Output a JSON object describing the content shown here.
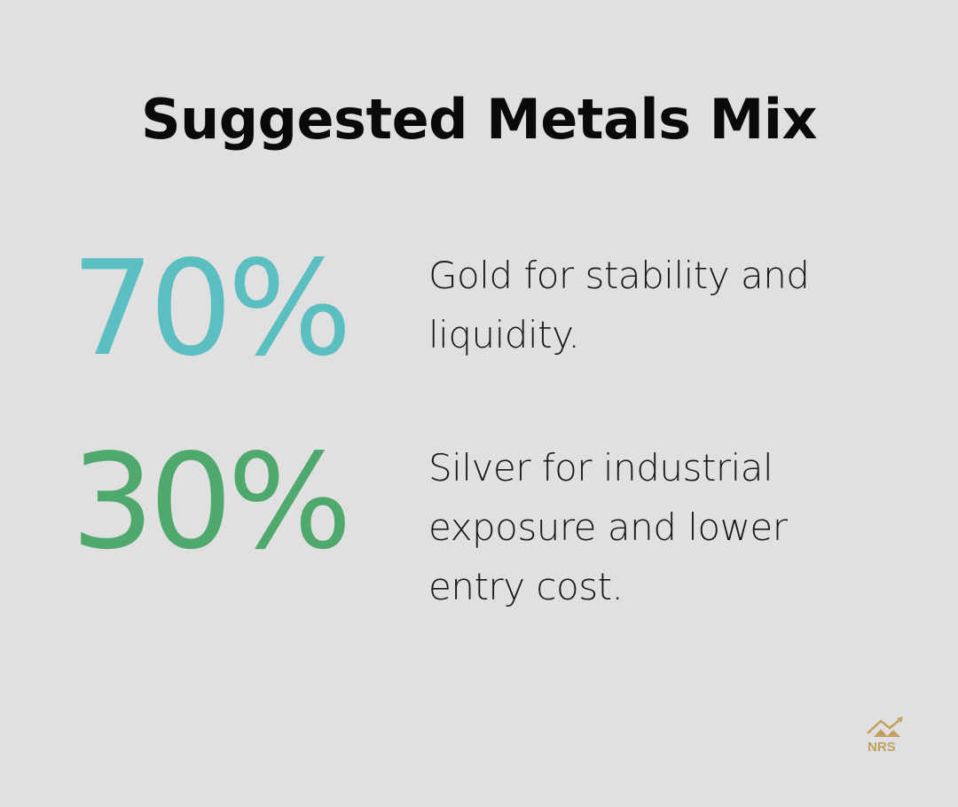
{
  "title": "Suggested Metals Mix",
  "items": [
    {
      "value": "70%",
      "description": "Gold for stability and liquidity.",
      "color": "#5bbfc2"
    },
    {
      "value": "30%",
      "description": "Silver for industrial exposure and lower entry cost.",
      "color": "#4fa96d"
    }
  ],
  "logo": {
    "text": "NRS",
    "color": "#c2a062"
  }
}
